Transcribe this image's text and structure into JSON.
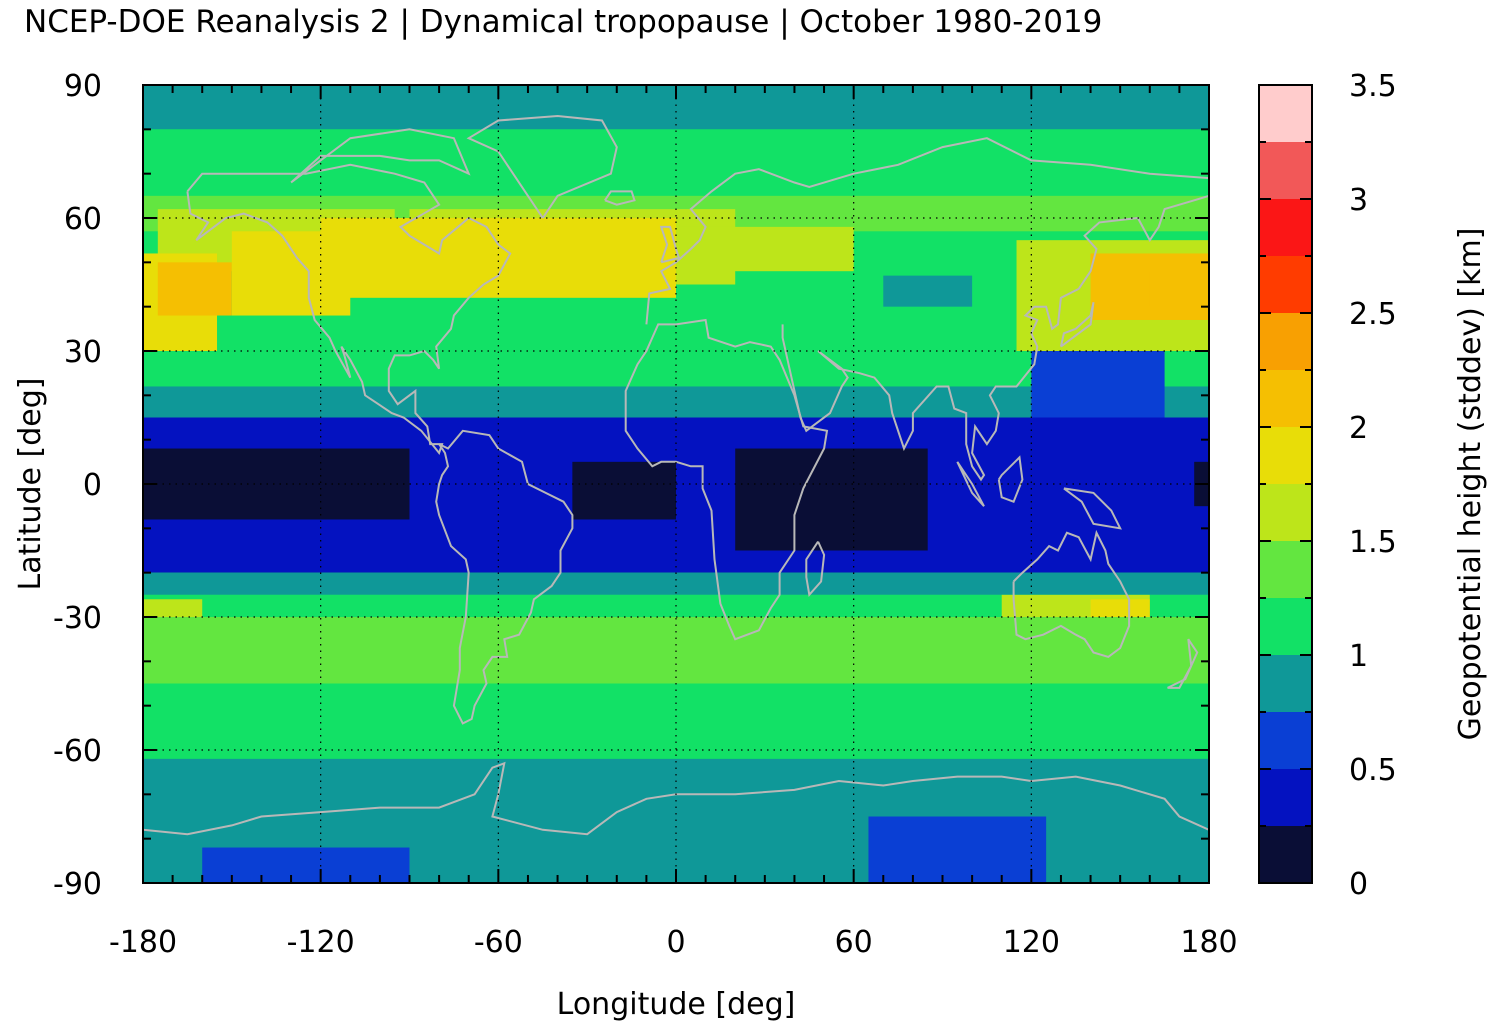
{
  "title": "NCEP-DOE Reanalysis 2 | Dynamical tropopause | October 1980-2019",
  "chart_data": {
    "type": "heatmap",
    "xlabel": "Longitude [deg]",
    "ylabel": "Latitude [deg]",
    "xlim": [
      -180,
      180
    ],
    "ylim": [
      -90,
      90
    ],
    "x_ticks": [
      "-180",
      "-120",
      "-60",
      "0",
      "60",
      "120",
      "180"
    ],
    "y_ticks": [
      "90",
      "60",
      "30",
      "0",
      "-30",
      "-60",
      "-90"
    ],
    "grid": true,
    "colorbar": {
      "label": "Geopotential height (stddev) [km]",
      "range": [
        0,
        3.5
      ],
      "ticks": [
        "0",
        "0.5",
        "1",
        "1.5",
        "2",
        "2.5",
        "3",
        "3.5"
      ],
      "levels": [
        0,
        0.25,
        0.5,
        0.75,
        1,
        1.25,
        1.5,
        1.75,
        2,
        2.25,
        2.5,
        2.75,
        3,
        3.25,
        3.5
      ],
      "colors": [
        "#0a0e36",
        "#0412c0",
        "#0a3fd4",
        "#0f9898",
        "#12e166",
        "#63e640",
        "#bde51a",
        "#e8dd08",
        "#f5bf02",
        "#f8a002",
        "#ff3c00",
        "#fb1616",
        "#f25858",
        "#ffcccc"
      ]
    },
    "regions": [
      {
        "lon": [
          -180,
          180
        ],
        "lat": [
          -90,
          90
        ],
        "value": 1.1
      },
      {
        "lon": [
          -180,
          180
        ],
        "lat": [
          80,
          90
        ],
        "value": 0.9
      },
      {
        "lon": [
          -180,
          180
        ],
        "lat": [
          65,
          80
        ],
        "value": 1.1
      },
      {
        "lon": [
          -180,
          180
        ],
        "lat": [
          57,
          65
        ],
        "value": 1.4
      },
      {
        "lon": [
          -175,
          -95
        ],
        "lat": [
          48,
          62
        ],
        "value": 1.6
      },
      {
        "lon": [
          -90,
          20
        ],
        "lat": [
          45,
          62
        ],
        "value": 1.6
      },
      {
        "lon": [
          -180,
          -155
        ],
        "lat": [
          30,
          52
        ],
        "value": 1.9
      },
      {
        "lon": [
          -175,
          -150
        ],
        "lat": [
          38,
          50
        ],
        "value": 2.1
      },
      {
        "lon": [
          -150,
          -110
        ],
        "lat": [
          38,
          57
        ],
        "value": 1.8
      },
      {
        "lon": [
          -120,
          0
        ],
        "lat": [
          42,
          60
        ],
        "value": 1.8
      },
      {
        "lon": [
          -60,
          -20
        ],
        "lat": [
          46,
          58
        ],
        "value": 1.9
      },
      {
        "lon": [
          0,
          60
        ],
        "lat": [
          48,
          58
        ],
        "value": 1.6
      },
      {
        "lon": [
          70,
          100
        ],
        "lat": [
          40,
          47
        ],
        "value": 0.9
      },
      {
        "lon": [
          115,
          180
        ],
        "lat": [
          30,
          55
        ],
        "value": 1.7
      },
      {
        "lon": [
          140,
          180
        ],
        "lat": [
          37,
          52
        ],
        "value": 2.0
      },
      {
        "lon": [
          160,
          180
        ],
        "lat": [
          40,
          48
        ],
        "value": 2.1
      },
      {
        "lon": [
          -180,
          180
        ],
        "lat": [
          22,
          30
        ],
        "value": 1.05
      },
      {
        "lon": [
          -180,
          180
        ],
        "lat": [
          15,
          22
        ],
        "value": 0.8
      },
      {
        "lon": [
          120,
          165
        ],
        "lat": [
          15,
          30
        ],
        "value": 0.6
      },
      {
        "lon": [
          -180,
          180
        ],
        "lat": [
          -20,
          15
        ],
        "value": 0.35
      },
      {
        "lon": [
          -180,
          -90
        ],
        "lat": [
          -8,
          8
        ],
        "value": 0.1
      },
      {
        "lon": [
          -35,
          0
        ],
        "lat": [
          -8,
          5
        ],
        "value": 0.1
      },
      {
        "lon": [
          20,
          85
        ],
        "lat": [
          -15,
          8
        ],
        "value": 0.1
      },
      {
        "lon": [
          175,
          180
        ],
        "lat": [
          -5,
          5
        ],
        "value": 0.1
      },
      {
        "lon": [
          -180,
          180
        ],
        "lat": [
          -25,
          -20
        ],
        "value": 0.8
      },
      {
        "lon": [
          -180,
          180
        ],
        "lat": [
          -30,
          -25
        ],
        "value": 1.2
      },
      {
        "lon": [
          -180,
          -160
        ],
        "lat": [
          -32,
          -26
        ],
        "value": 1.6
      },
      {
        "lon": [
          -60,
          30
        ],
        "lat": [
          -42,
          -30
        ],
        "value": 1.6
      },
      {
        "lon": [
          40,
          55
        ],
        "lat": [
          -42,
          -36
        ],
        "value": 1.6
      },
      {
        "lon": [
          110,
          160
        ],
        "lat": [
          -36,
          -25
        ],
        "value": 1.6
      },
      {
        "lon": [
          140,
          160
        ],
        "lat": [
          -32,
          -26
        ],
        "value": 1.9
      },
      {
        "lon": [
          -180,
          180
        ],
        "lat": [
          -45,
          -30
        ],
        "value": 1.4
      },
      {
        "lon": [
          -180,
          180
        ],
        "lat": [
          -62,
          -45
        ],
        "value": 1.1
      },
      {
        "lon": [
          -180,
          180
        ],
        "lat": [
          -90,
          -62
        ],
        "value": 0.9
      },
      {
        "lon": [
          -160,
          -90
        ],
        "lat": [
          -90,
          -82
        ],
        "value": 0.6
      },
      {
        "lon": [
          65,
          125
        ],
        "lat": [
          -90,
          -75
        ],
        "value": 0.6
      }
    ]
  }
}
